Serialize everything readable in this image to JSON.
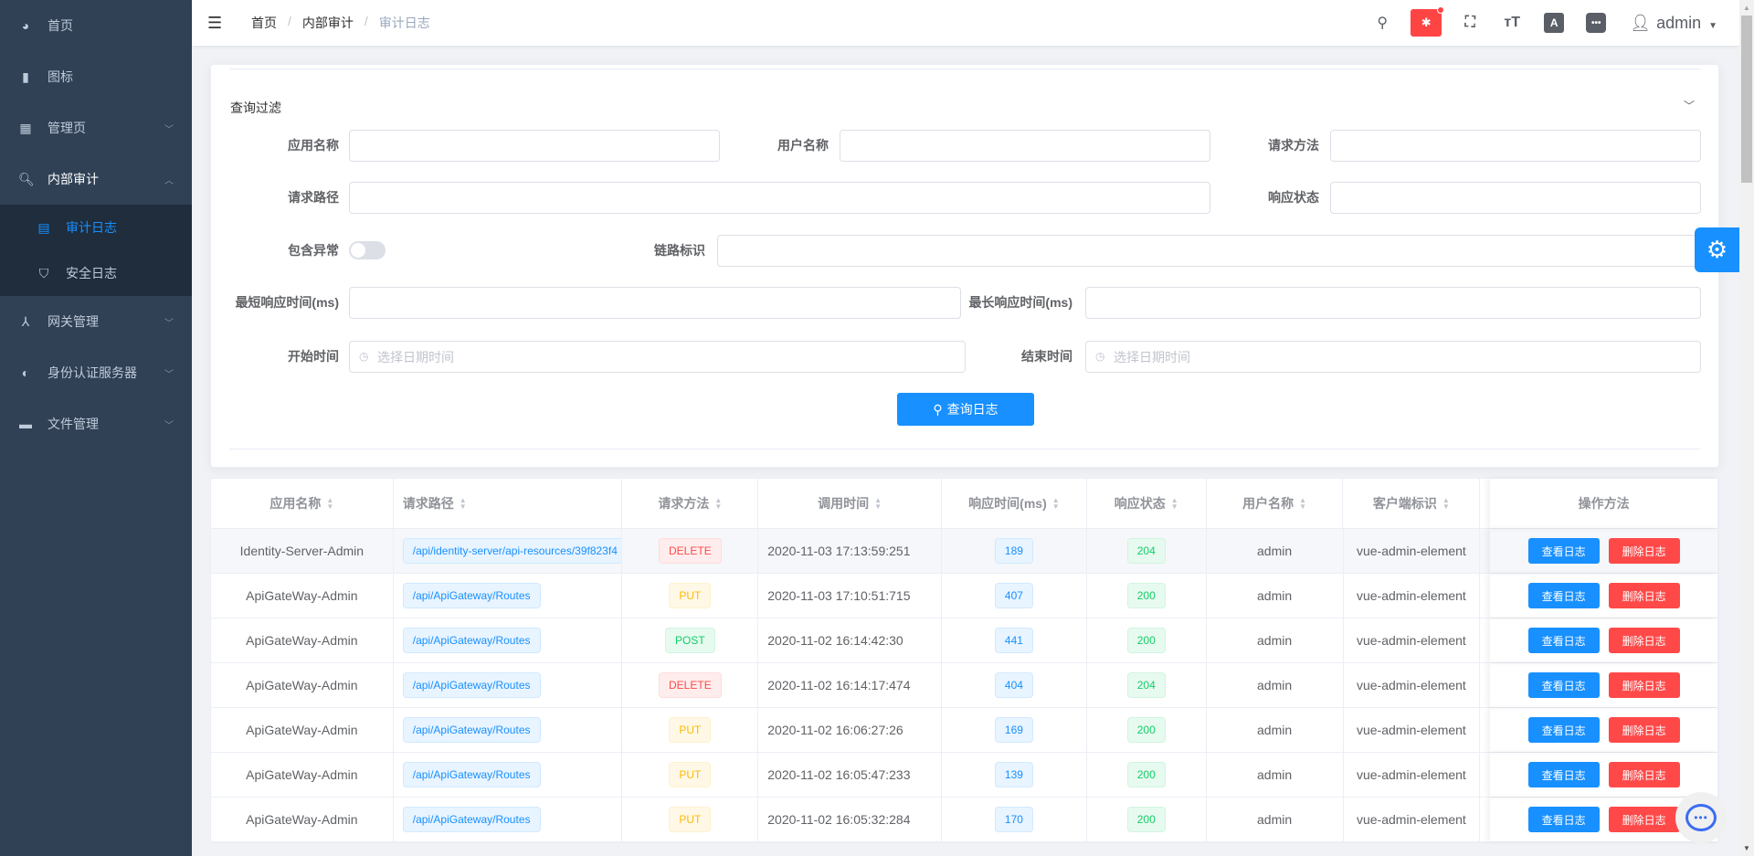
{
  "sidebar": {
    "items": [
      {
        "label": "首页",
        "icon": "dashboard-icon",
        "glyph": "◕"
      },
      {
        "label": "图标",
        "icon": "icon-font-icon",
        "glyph": "▮"
      },
      {
        "label": "管理页",
        "icon": "grid-icon",
        "glyph": "▦",
        "arrow": "﹀"
      },
      {
        "label": "内部审计",
        "icon": "audit-icon",
        "glyph": "🔍︎",
        "arrow": "︿"
      },
      {
        "label": "网关管理",
        "icon": "gateway-icon",
        "glyph": "⅄",
        "arrow": "﹀"
      },
      {
        "label": "身份认证服务器",
        "icon": "identity-icon",
        "glyph": "◐",
        "arrow": "﹀"
      },
      {
        "label": "文件管理",
        "icon": "folder-icon",
        "glyph": "▬",
        "arrow": "﹀"
      }
    ],
    "subitems": [
      {
        "label": "审计日志",
        "icon": "document-icon",
        "glyph": "▤"
      },
      {
        "label": "安全日志",
        "icon": "shield-icon",
        "glyph": "⛉"
      }
    ]
  },
  "header": {
    "breadcrumb": [
      "首页",
      "内部审计",
      "审计日志"
    ],
    "separator": "/",
    "user": "admin"
  },
  "filter": {
    "title": "查询过滤",
    "labels": {
      "app_name": "应用名称",
      "user_name": "用户名称",
      "method": "请求方法",
      "path": "请求路径",
      "status": "响应状态",
      "has_exception": "包含异常",
      "trace_id": "链路标识",
      "min_time": "最短响应时间(ms)",
      "max_time": "最长响应时间(ms)",
      "start_time": "开始时间",
      "end_time": "结束时间"
    },
    "date_placeholder": "选择日期时间",
    "has_exception": false,
    "query_button": "查询日志"
  },
  "table": {
    "columns": [
      "应用名称",
      "请求路径",
      "请求方法",
      "调用时间",
      "响应时间(ms)",
      "响应状态",
      "用户名称",
      "客户端标识",
      "操作方法"
    ],
    "view_label": "查看日志",
    "delete_label": "删除日志",
    "rows": [
      {
        "app": "Identity-Server-Admin",
        "path": "/api/identity-server/api-resources/39f823f4",
        "method": "DELETE",
        "time": "2020-11-03 17:13:59:251",
        "ms": "189",
        "status": "204",
        "user": "admin",
        "client": "vue-admin-element"
      },
      {
        "app": "ApiGateWay-Admin",
        "path": "/api/ApiGateway/Routes",
        "method": "PUT",
        "time": "2020-11-03 17:10:51:715",
        "ms": "407",
        "status": "200",
        "user": "admin",
        "client": "vue-admin-element"
      },
      {
        "app": "ApiGateWay-Admin",
        "path": "/api/ApiGateway/Routes",
        "method": "POST",
        "time": "2020-11-02 16:14:42:30",
        "ms": "441",
        "status": "200",
        "user": "admin",
        "client": "vue-admin-element"
      },
      {
        "app": "ApiGateWay-Admin",
        "path": "/api/ApiGateway/Routes",
        "method": "DELETE",
        "time": "2020-11-02 16:14:17:474",
        "ms": "404",
        "status": "204",
        "user": "admin",
        "client": "vue-admin-element"
      },
      {
        "app": "ApiGateWay-Admin",
        "path": "/api/ApiGateway/Routes",
        "method": "PUT",
        "time": "2020-11-02 16:06:27:26",
        "ms": "169",
        "status": "200",
        "user": "admin",
        "client": "vue-admin-element"
      },
      {
        "app": "ApiGateWay-Admin",
        "path": "/api/ApiGateway/Routes",
        "method": "PUT",
        "time": "2020-11-02 16:05:47:233",
        "ms": "139",
        "status": "200",
        "user": "admin",
        "client": "vue-admin-element"
      },
      {
        "app": "ApiGateWay-Admin",
        "path": "/api/ApiGateway/Routes",
        "method": "PUT",
        "time": "2020-11-02 16:05:32:284",
        "ms": "170",
        "status": "200",
        "user": "admin",
        "client": "vue-admin-element"
      }
    ]
  },
  "colors": {
    "primary": "#1890ff",
    "danger": "#ff4949",
    "sidebar": "#304156"
  }
}
